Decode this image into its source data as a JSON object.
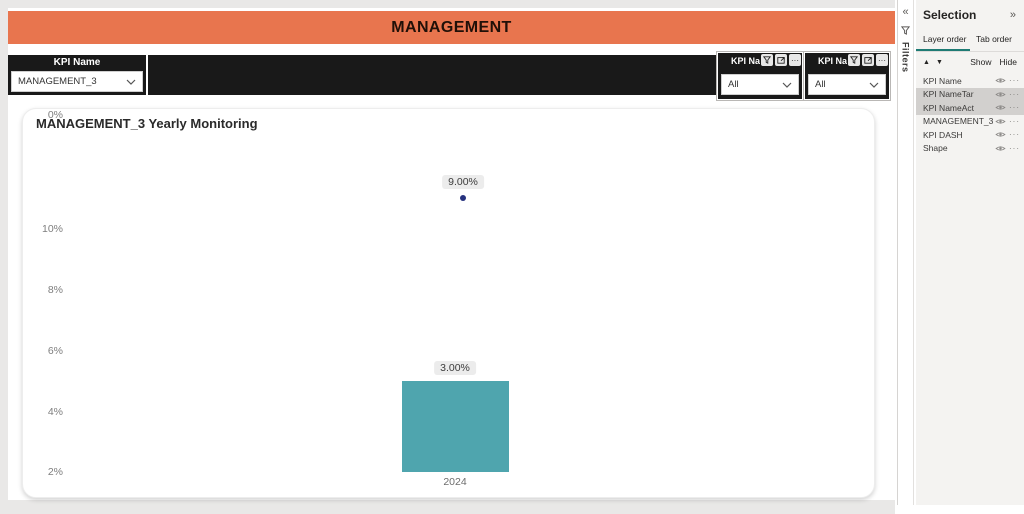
{
  "banner": {
    "title": "MANAGEMENT"
  },
  "toolbar": {
    "kpi_slicer": {
      "title": "KPI Name",
      "selected_value": "MANAGEMENT_3"
    },
    "more_icon": "···",
    "filter_slicers": [
      {
        "title": "KPI Na",
        "selected_value": "All"
      },
      {
        "title": "KPI Na",
        "selected_value": "All"
      }
    ]
  },
  "chart_data": {
    "type": "bar",
    "title": "MANAGEMENT_3 Yearly Monitoring",
    "categories": [
      "2024"
    ],
    "series": [
      {
        "name": "actual-bar",
        "type": "bar",
        "values": [
          3.0
        ],
        "data_labels": [
          "3.00%"
        ],
        "color": "#4FA5AE"
      },
      {
        "name": "target-point",
        "type": "scatter",
        "values": [
          9.0
        ],
        "data_labels": [
          "9.00%"
        ],
        "color": "#26327E"
      }
    ],
    "xlabel": "",
    "ylabel": "",
    "ylim": [
      0,
      10
    ],
    "ytick_labels": [
      "10%",
      "8%",
      "6%",
      "4%",
      "2%",
      "0%"
    ],
    "grid": false,
    "legend": false
  },
  "filters_pane": {
    "label": "Filters",
    "expand_icon": "«"
  },
  "selection_pane": {
    "title": "Selection",
    "collapse_icon": "»",
    "tabs": [
      {
        "label": "Layer order",
        "active": true
      },
      {
        "label": "Tab order",
        "active": false
      }
    ],
    "move_up_icon": "▲",
    "move_down_icon": "▼",
    "show_label": "Show",
    "hide_label": "Hide",
    "more_icon": "···",
    "layers": [
      {
        "label": "KPI Name",
        "selected": false
      },
      {
        "label": "KPI NameTar",
        "selected": true
      },
      {
        "label": "KPI NameAct",
        "selected": true
      },
      {
        "label": "MANAGEMENT_3 Yearl...",
        "selected": false
      },
      {
        "label": "KPI DASH",
        "selected": false
      },
      {
        "label": "Shape",
        "selected": false
      }
    ]
  },
  "colors": {
    "banner_bg": "#E8754E",
    "slicer_bg": "#191919",
    "bar_fill": "#4FA5AE",
    "marker_fill": "#26327E",
    "tab_underline": "#1E7B74",
    "label_chip_bg": "#ECECEC"
  }
}
